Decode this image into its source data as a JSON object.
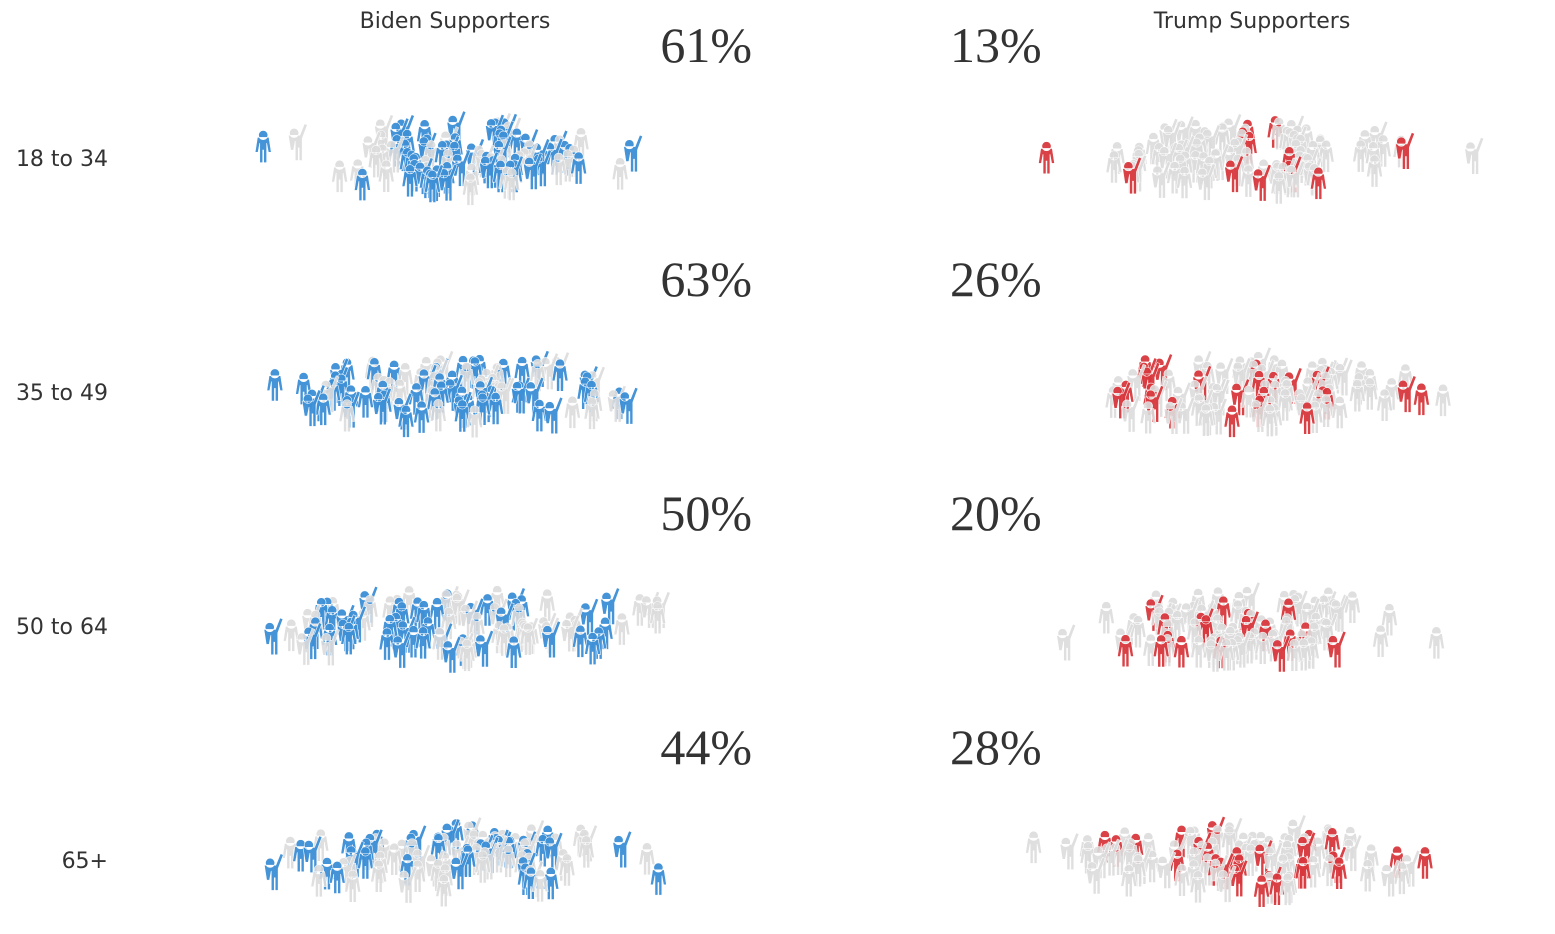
{
  "chart_data": {
    "type": "crowd",
    "categories": [
      "18 to 34",
      "35 to 49",
      "50 to 64",
      "65+"
    ],
    "series": [
      {
        "name": "Biden Supporters",
        "color": "#3d8fd6",
        "values": [
          61,
          63,
          50,
          44
        ],
        "value_labels": [
          "61%",
          "63%",
          "50%",
          "44%"
        ]
      },
      {
        "name": "Trump Supporters",
        "color": "#d8383d",
        "values": [
          13,
          26,
          20,
          28
        ],
        "value_labels": [
          "13%",
          "26%",
          "20%",
          "28%"
        ]
      }
    ],
    "other_color": "#dcdcdc"
  }
}
